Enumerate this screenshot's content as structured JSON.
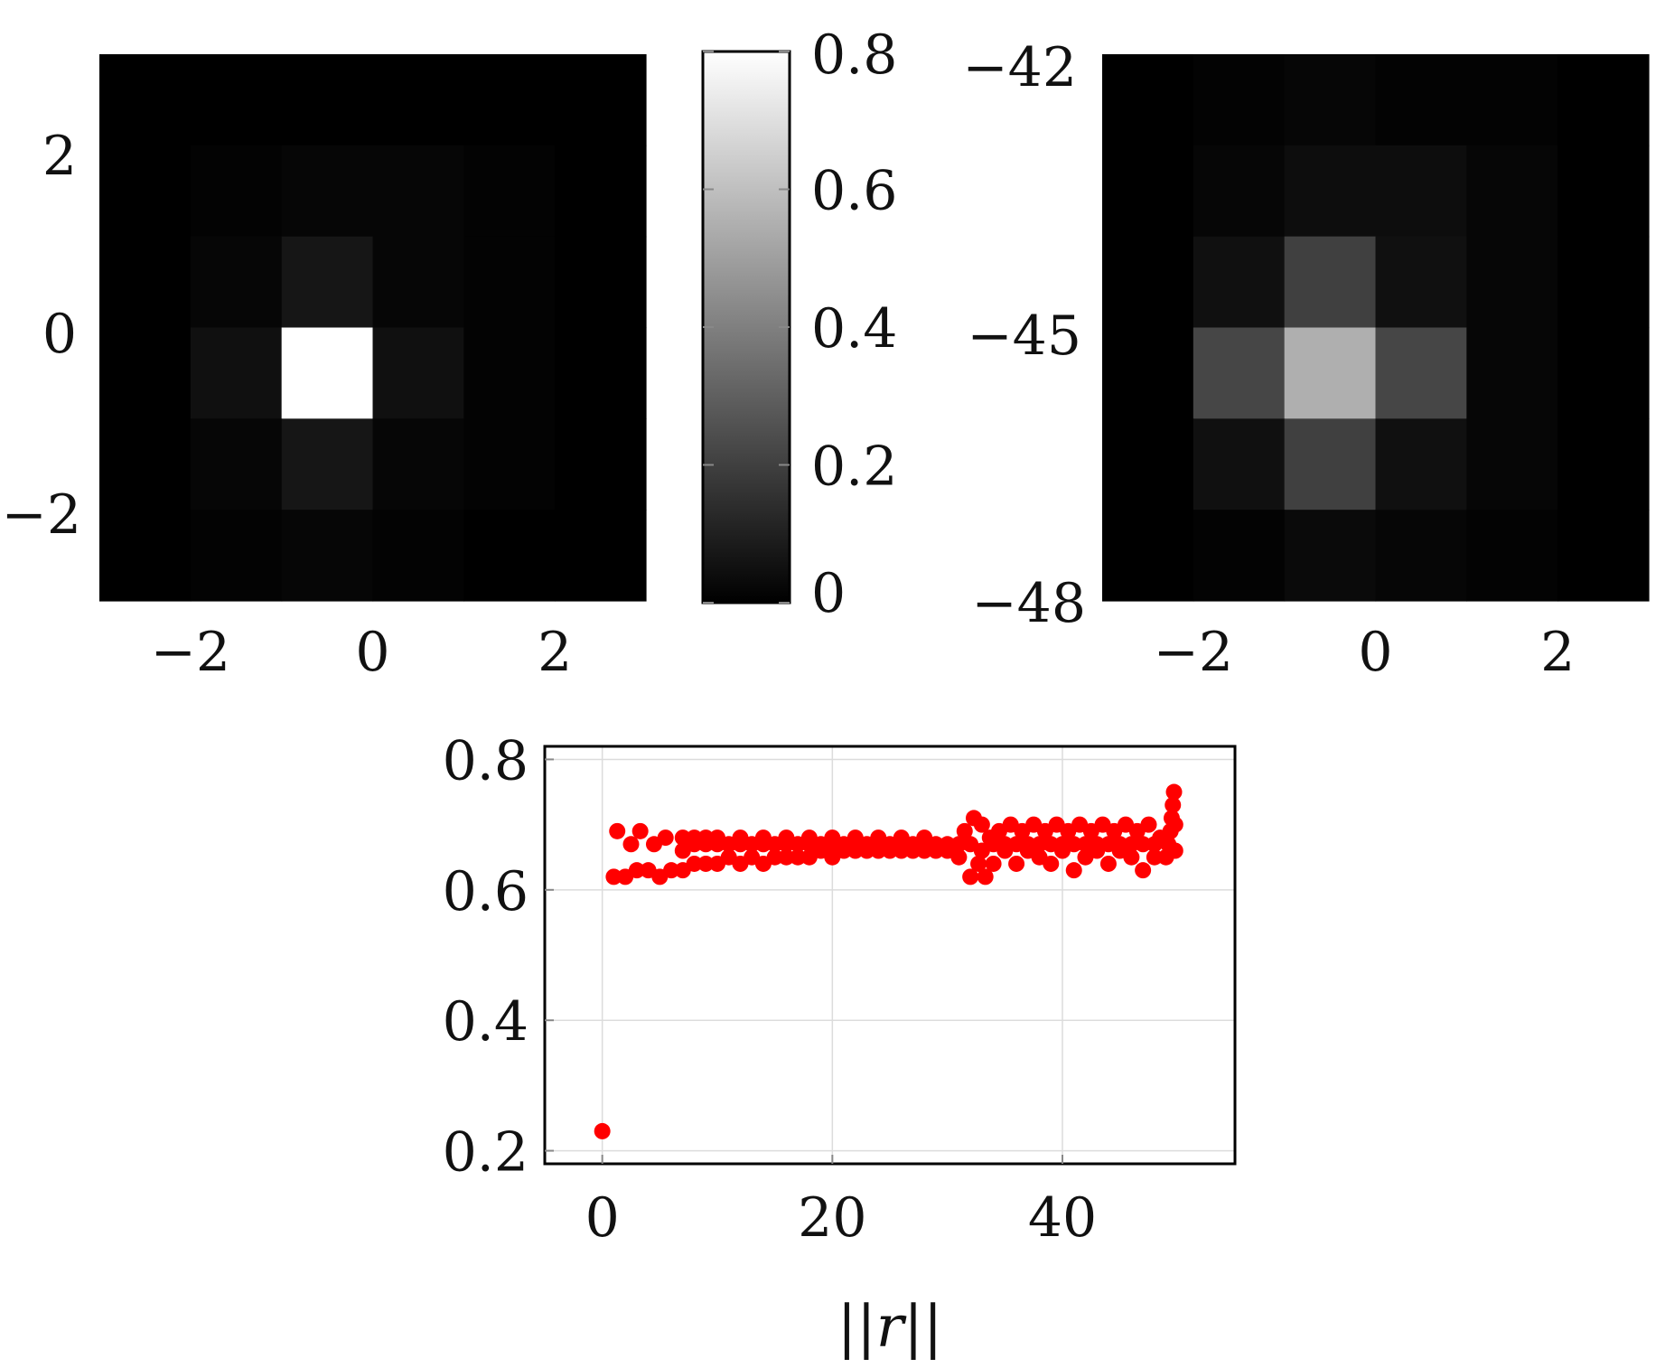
{
  "chart_data": [
    {
      "type": "heatmap",
      "name": "left-heatmap",
      "colormap": "gray",
      "vmin": 0,
      "vmax": 0.8,
      "x_ticks": [
        "−2",
        "0",
        "2"
      ],
      "y_ticks": [
        "2",
        "0",
        "−2"
      ],
      "x_range": [
        -3,
        3
      ],
      "y_range": [
        -3,
        3
      ],
      "grid": [
        [
          0.0,
          0.0,
          0.0,
          0.0,
          0.0,
          0.0
        ],
        [
          0.0,
          0.01,
          0.02,
          0.02,
          0.01,
          0.0
        ],
        [
          0.0,
          0.02,
          0.07,
          0.02,
          0.01,
          0.0
        ],
        [
          0.0,
          0.05,
          0.8,
          0.05,
          0.01,
          0.0
        ],
        [
          0.0,
          0.02,
          0.07,
          0.02,
          0.01,
          0.0
        ],
        [
          0.0,
          0.01,
          0.02,
          0.01,
          0.0,
          0.0
        ]
      ]
    },
    {
      "type": "colorbar",
      "name": "colorbar",
      "colormap": "gray",
      "vmin": 0,
      "vmax": 0.8,
      "ticks": [
        "0.8",
        "0.6",
        "0.4",
        "0.2",
        "0"
      ]
    },
    {
      "type": "heatmap",
      "name": "right-heatmap",
      "colormap": "gray",
      "x_ticks": [
        "−2",
        "0",
        "2"
      ],
      "y_ticks": [
        "−42",
        "−45",
        "−48"
      ],
      "x_range": [
        -3,
        3
      ],
      "y_range": [
        -48,
        -42
      ],
      "grid": [
        [
          0.0,
          0.01,
          0.02,
          0.01,
          0.01,
          0.0
        ],
        [
          0.0,
          0.02,
          0.04,
          0.04,
          0.02,
          0.0
        ],
        [
          0.0,
          0.05,
          0.2,
          0.05,
          0.02,
          0.0
        ],
        [
          0.0,
          0.22,
          0.55,
          0.22,
          0.02,
          0.0
        ],
        [
          0.0,
          0.05,
          0.2,
          0.05,
          0.02,
          0.0
        ],
        [
          0.0,
          0.01,
          0.03,
          0.02,
          0.01,
          0.0
        ]
      ]
    },
    {
      "type": "scatter",
      "name": "bottom-scatter",
      "xlabel": "||r||",
      "ylabel": "",
      "xlim": [
        -5,
        55
      ],
      "ylim": [
        0.18,
        0.82
      ],
      "x_ticks": [
        0,
        20,
        40
      ],
      "x_tick_labels": [
        "0",
        "20",
        "40"
      ],
      "y_ticks": [
        0.2,
        0.4,
        0.6,
        0.8
      ],
      "y_tick_labels": [
        "0.2",
        "0.4",
        "0.6",
        "0.8"
      ],
      "grid": true,
      "color": "#ff0000",
      "points": [
        [
          0,
          0.23
        ],
        [
          1,
          0.62
        ],
        [
          2,
          0.62
        ],
        [
          3,
          0.63
        ],
        [
          4,
          0.63
        ],
        [
          5,
          0.62
        ],
        [
          6,
          0.63
        ],
        [
          1.3,
          0.69
        ],
        [
          2.5,
          0.67
        ],
        [
          3.3,
          0.69
        ],
        [
          4.5,
          0.67
        ],
        [
          5.5,
          0.68
        ],
        [
          7,
          0.63
        ],
        [
          8,
          0.64
        ],
        [
          9,
          0.64
        ],
        [
          10,
          0.64
        ],
        [
          11,
          0.65
        ],
        [
          12,
          0.64
        ],
        [
          13,
          0.65
        ],
        [
          14,
          0.64
        ],
        [
          15,
          0.65
        ],
        [
          16,
          0.65
        ],
        [
          17,
          0.65
        ],
        [
          18,
          0.65
        ],
        [
          19,
          0.66
        ],
        [
          20,
          0.65
        ],
        [
          21,
          0.66
        ],
        [
          22,
          0.66
        ],
        [
          23,
          0.66
        ],
        [
          24,
          0.66
        ],
        [
          25,
          0.66
        ],
        [
          26,
          0.66
        ],
        [
          27,
          0.66
        ],
        [
          28,
          0.66
        ],
        [
          29,
          0.66
        ],
        [
          30,
          0.66
        ],
        [
          7,
          0.66
        ],
        [
          8,
          0.67
        ],
        [
          9,
          0.67
        ],
        [
          10,
          0.67
        ],
        [
          11,
          0.67
        ],
        [
          12,
          0.67
        ],
        [
          13,
          0.67
        ],
        [
          14,
          0.67
        ],
        [
          15,
          0.67
        ],
        [
          16,
          0.67
        ],
        [
          17,
          0.67
        ],
        [
          18,
          0.67
        ],
        [
          19,
          0.67
        ],
        [
          20,
          0.67
        ],
        [
          21,
          0.67
        ],
        [
          22,
          0.67
        ],
        [
          23,
          0.67
        ],
        [
          24,
          0.67
        ],
        [
          25,
          0.67
        ],
        [
          26,
          0.67
        ],
        [
          27,
          0.67
        ],
        [
          28,
          0.67
        ],
        [
          29,
          0.67
        ],
        [
          30,
          0.67
        ],
        [
          7,
          0.68
        ],
        [
          8,
          0.68
        ],
        [
          9,
          0.68
        ],
        [
          10,
          0.68
        ],
        [
          12,
          0.68
        ],
        [
          14,
          0.68
        ],
        [
          16,
          0.68
        ],
        [
          18,
          0.68
        ],
        [
          20,
          0.68
        ],
        [
          22,
          0.68
        ],
        [
          24,
          0.68
        ],
        [
          26,
          0.68
        ],
        [
          28,
          0.68
        ],
        [
          31,
          0.65
        ],
        [
          31.5,
          0.69
        ],
        [
          32,
          0.62
        ],
        [
          32.3,
          0.71
        ],
        [
          32.7,
          0.64
        ],
        [
          33,
          0.7
        ],
        [
          33.3,
          0.62
        ],
        [
          33.7,
          0.68
        ],
        [
          34,
          0.64
        ],
        [
          34.5,
          0.69
        ],
        [
          35,
          0.66
        ],
        [
          35.5,
          0.7
        ],
        [
          36,
          0.64
        ],
        [
          36.5,
          0.69
        ],
        [
          37,
          0.66
        ],
        [
          37.5,
          0.7
        ],
        [
          38,
          0.65
        ],
        [
          38.5,
          0.69
        ],
        [
          39,
          0.64
        ],
        [
          39.5,
          0.7
        ],
        [
          40,
          0.66
        ],
        [
          40.5,
          0.69
        ],
        [
          41,
          0.63
        ],
        [
          41.5,
          0.7
        ],
        [
          42,
          0.65
        ],
        [
          42.5,
          0.69
        ],
        [
          43,
          0.66
        ],
        [
          43.5,
          0.7
        ],
        [
          44,
          0.64
        ],
        [
          44.5,
          0.69
        ],
        [
          45,
          0.66
        ],
        [
          45.5,
          0.7
        ],
        [
          46,
          0.65
        ],
        [
          46.5,
          0.69
        ],
        [
          47,
          0.63
        ],
        [
          47.5,
          0.7
        ],
        [
          48,
          0.65
        ],
        [
          48.5,
          0.68
        ],
        [
          31,
          0.67
        ],
        [
          32,
          0.67
        ],
        [
          33,
          0.66
        ],
        [
          34,
          0.67
        ],
        [
          35,
          0.67
        ],
        [
          36,
          0.67
        ],
        [
          37,
          0.67
        ],
        [
          38,
          0.67
        ],
        [
          39,
          0.67
        ],
        [
          40,
          0.67
        ],
        [
          41,
          0.67
        ],
        [
          42,
          0.67
        ],
        [
          43,
          0.67
        ],
        [
          44,
          0.67
        ],
        [
          45,
          0.67
        ],
        [
          46,
          0.67
        ],
        [
          47,
          0.67
        ],
        [
          48,
          0.67
        ],
        [
          49,
          0.65
        ],
        [
          49.2,
          0.67
        ],
        [
          49.4,
          0.69
        ],
        [
          49.5,
          0.71
        ],
        [
          49.6,
          0.73
        ],
        [
          49.7,
          0.75
        ],
        [
          49.8,
          0.66
        ],
        [
          49.8,
          0.7
        ]
      ]
    }
  ]
}
